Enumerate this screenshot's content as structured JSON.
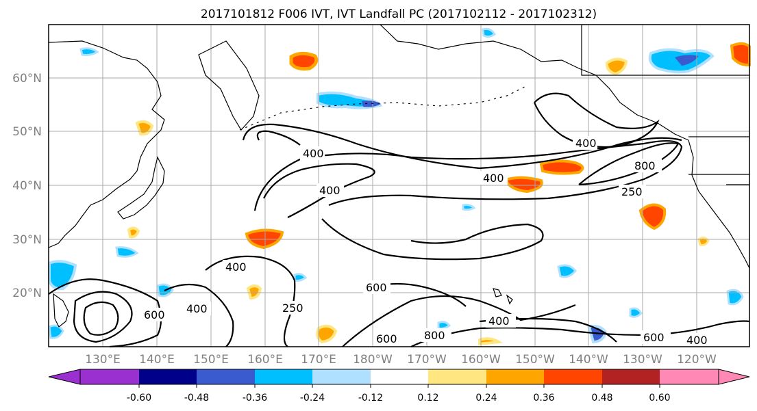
{
  "figure": {
    "title": "2017101812 F006 IVT, IVT Landfall PC (2017102112 - 2017102312)"
  },
  "map": {
    "lat_labels": [
      "60°N",
      "50°N",
      "40°N",
      "30°N",
      "20°N"
    ],
    "lon_labels": [
      "130°E",
      "140°E",
      "150°E",
      "160°E",
      "170°E",
      "180°W",
      "170°W",
      "160°W",
      "150°W",
      "140°W",
      "130°W",
      "120°W"
    ],
    "contour_labels": [
      "400",
      "400",
      "400",
      "400",
      "400",
      "400",
      "600",
      "600",
      "600",
      "600",
      "800",
      "800",
      "250",
      "250",
      "400",
      "400"
    ]
  },
  "colorbar": {
    "tick_labels": [
      "-0.60",
      "-0.48",
      "-0.36",
      "-0.24",
      "-0.12",
      "0.12",
      "0.24",
      "0.36",
      "0.48",
      "0.60"
    ],
    "colors": [
      "#9b30d0",
      "#00008b",
      "#3a5bd0",
      "#00bfff",
      "#b0e0ff",
      "#ffffff",
      "#ffe680",
      "#ffa500",
      "#ff4500",
      "#b22222",
      "#ff88b4"
    ]
  },
  "chart_data": {
    "type": "heatmap",
    "title": "2017101812 F006 IVT, IVT Landfall PC (2017102112 - 2017102312)",
    "xlabel": "",
    "ylabel": "",
    "x_ticks": [
      "130°E",
      "140°E",
      "150°E",
      "160°E",
      "170°E",
      "180°W",
      "170°W",
      "160°W",
      "150°W",
      "140°W",
      "130°W",
      "120°W"
    ],
    "y_ticks": [
      "60°N",
      "50°N",
      "40°N",
      "30°N",
      "20°N"
    ],
    "grid": true,
    "contour_levels": [
      250,
      400,
      600,
      800
    ],
    "colorbar_levels": [
      -0.6,
      -0.48,
      -0.36,
      -0.24,
      -0.12,
      0.12,
      0.24,
      0.36,
      0.48,
      0.6
    ],
    "colorbar_extend": "both",
    "colorbar_position": "bottom"
  }
}
